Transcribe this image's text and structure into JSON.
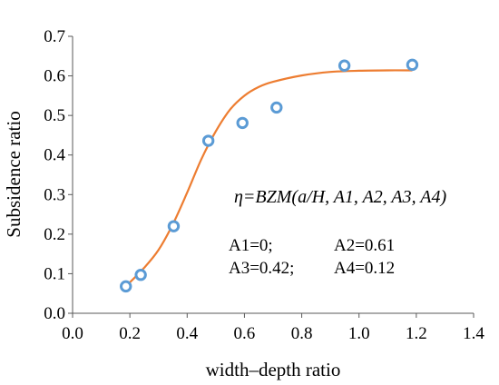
{
  "chart_data": {
    "type": "scatter",
    "xlabel": "width–depth ratio",
    "ylabel": "Subsidence ratio",
    "xlim": [
      0.0,
      1.4
    ],
    "ylim": [
      0.0,
      0.7
    ],
    "x_ticks": [
      "0.0",
      "0.2",
      "0.4",
      "0.6",
      "0.8",
      "1.0",
      "1.2",
      "1.4"
    ],
    "y_ticks": [
      "0.0",
      "0.1",
      "0.2",
      "0.3",
      "0.4",
      "0.5",
      "0.6",
      "0.7"
    ],
    "grid": false,
    "series": [
      {
        "kind": "points",
        "color": "#5B9BD5",
        "x": [
          0.186,
          0.238,
          0.353,
          0.474,
          0.593,
          0.712,
          0.949,
          1.186
        ],
        "y": [
          0.068,
          0.097,
          0.22,
          0.436,
          0.481,
          0.52,
          0.626,
          0.628
        ]
      },
      {
        "kind": "fitted-curve",
        "color": "#ED7D31",
        "x": [
          0.186,
          0.25,
          0.3,
          0.35,
          0.4,
          0.45,
          0.5,
          0.55,
          0.6,
          0.65,
          0.7,
          0.8,
          0.9,
          1.0,
          1.1,
          1.186
        ],
        "y": [
          0.068,
          0.115,
          0.16,
          0.225,
          0.305,
          0.39,
          0.46,
          0.515,
          0.55,
          0.572,
          0.585,
          0.601,
          0.61,
          0.613,
          0.614,
          0.614
        ]
      }
    ],
    "annotations": {
      "formula": "η=BZM(a/H, A1, A2, A3, A4)",
      "param_a1": "A1=0;",
      "param_a2": "A2=0.61",
      "param_a3": "A3=0.42;",
      "param_a4": "A4=0.12"
    }
  }
}
